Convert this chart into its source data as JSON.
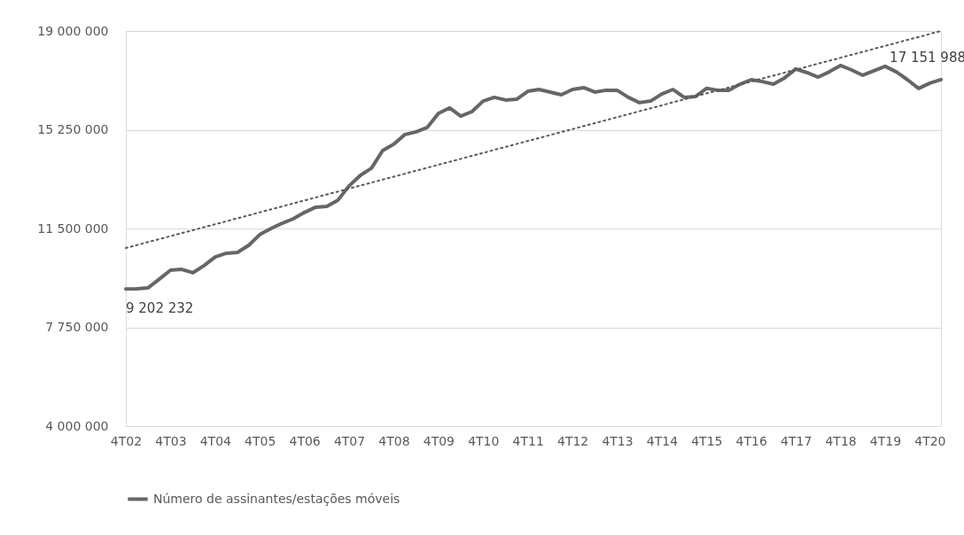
{
  "chart_data": {
    "type": "line",
    "categories": [
      "4T02",
      null,
      null,
      null,
      "4T03",
      null,
      null,
      null,
      "4T04",
      null,
      null,
      null,
      "4T05",
      null,
      null,
      null,
      "4T06",
      null,
      null,
      null,
      "4T07",
      null,
      null,
      null,
      "4T08",
      null,
      null,
      null,
      "4T09",
      null,
      null,
      null,
      "4T10",
      null,
      null,
      null,
      "4T11",
      null,
      null,
      null,
      "4T12",
      null,
      null,
      null,
      "4T13",
      null,
      null,
      null,
      "4T14",
      null,
      null,
      null,
      "4T15",
      null,
      null,
      null,
      "4T16",
      null,
      null,
      null,
      "4T17",
      null,
      null,
      null,
      "4T18",
      null,
      null,
      null,
      "4T19",
      null,
      null,
      null,
      "4T20",
      null
    ],
    "series": [
      {
        "name": "Número de assinantes/estações móveis",
        "color": "#666666",
        "line_style": "solid",
        "values": [
          9202232,
          9210000,
          9250000,
          9580000,
          9920000,
          9950000,
          9820000,
          10090000,
          10420000,
          10560000,
          10590000,
          10860000,
          11270000,
          11500000,
          11700000,
          11870000,
          12110000,
          12310000,
          12340000,
          12580000,
          13120000,
          13520000,
          13790000,
          14460000,
          14700000,
          15070000,
          15170000,
          15340000,
          15870000,
          16080000,
          15770000,
          15940000,
          16340000,
          16480000,
          16380000,
          16410000,
          16710000,
          16780000,
          16680000,
          16580000,
          16780000,
          16850000,
          16680000,
          16750000,
          16750000,
          16480000,
          16280000,
          16340000,
          16610000,
          16780000,
          16480000,
          16510000,
          16820000,
          16750000,
          16750000,
          16980000,
          17150000,
          17080000,
          16980000,
          17220000,
          17560000,
          17420000,
          17250000,
          17450000,
          17690000,
          17520000,
          17320000,
          17490000,
          17660000,
          17450000,
          17150000,
          16820000,
          17020000,
          17151988
        ],
        "value_labels": [
          "9 202 232",
          null,
          null,
          null,
          null,
          null,
          null,
          null,
          null,
          null,
          null,
          null,
          null,
          null,
          null,
          null,
          null,
          null,
          null,
          null,
          null,
          null,
          null,
          null,
          null,
          null,
          null,
          null,
          null,
          null,
          null,
          null,
          null,
          null,
          null,
          null,
          null,
          null,
          null,
          null,
          null,
          null,
          null,
          null,
          null,
          null,
          null,
          null,
          null,
          null,
          null,
          null,
          null,
          null,
          null,
          null,
          null,
          null,
          null,
          null,
          null,
          null,
          null,
          null,
          null,
          null,
          null,
          null,
          null,
          null,
          null,
          null,
          null,
          "17 151 988"
        ]
      },
      {
        "type": "line",
        "color": "#595959",
        "line_style": "dotted",
        "values": [
          10760000,
          null,
          null,
          null,
          null,
          null,
          null,
          null,
          null,
          null,
          null,
          null,
          null,
          null,
          null,
          null,
          null,
          null,
          null,
          null,
          null,
          null,
          null,
          null,
          null,
          null,
          null,
          null,
          null,
          null,
          null,
          null,
          null,
          null,
          null,
          null,
          null,
          null,
          null,
          null,
          null,
          null,
          null,
          null,
          null,
          null,
          null,
          null,
          null,
          null,
          null,
          null,
          null,
          null,
          null,
          null,
          null,
          null,
          null,
          null,
          null,
          null,
          null,
          null,
          null,
          null,
          null,
          null,
          null,
          null,
          null,
          null,
          null,
          19000000
        ]
      }
    ],
    "ylim": [
      4000000,
      19000000
    ],
    "yticks": [
      4000000,
      7750000,
      11500000,
      15250000,
      19000000
    ],
    "grid": "y",
    "legend": "bottom"
  }
}
